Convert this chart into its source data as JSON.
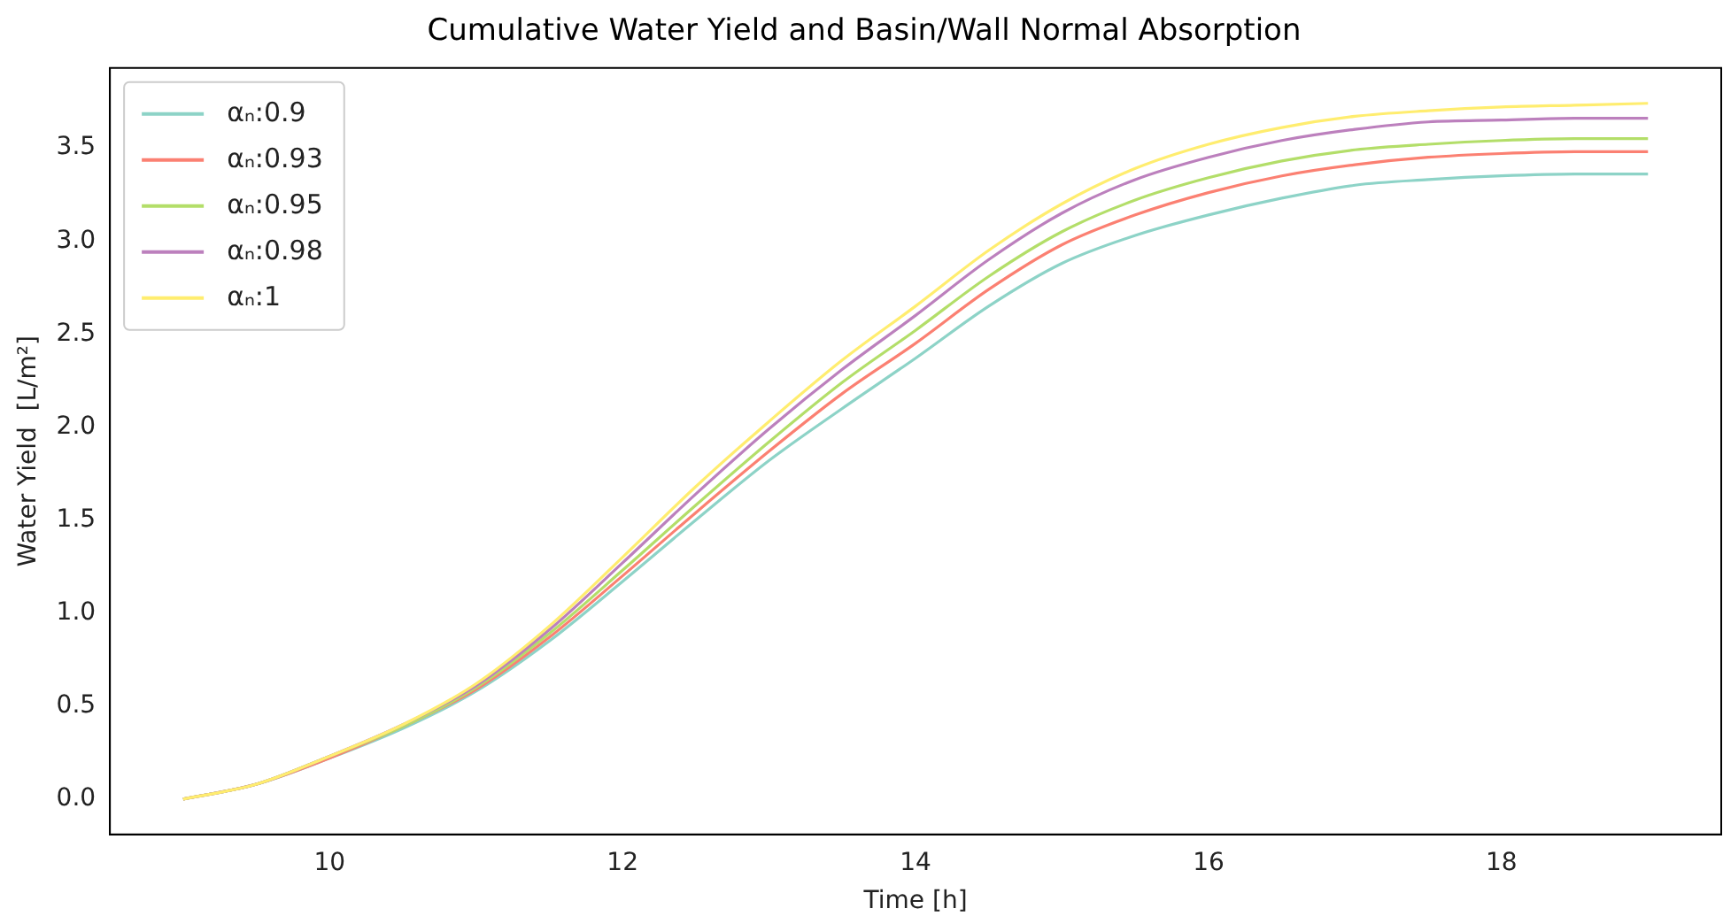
{
  "chart_data": {
    "type": "line",
    "title": "Cumulative Water Yield and Basin/Wall Normal Absorption",
    "xlabel": "Time [h]",
    "ylabel": "Water Yield  [L/m²]",
    "x": [
      9,
      9.5,
      10,
      10.5,
      11,
      11.5,
      12,
      12.5,
      13,
      13.5,
      14,
      14.5,
      15,
      15.5,
      16,
      16.5,
      17,
      17.5,
      18,
      18.5,
      19
    ],
    "series": [
      {
        "name": "αₙ:0.9",
        "color": "#8dd3c7",
        "values": [
          0,
          0.08,
          0.22,
          0.38,
          0.58,
          0.85,
          1.17,
          1.5,
          1.82,
          2.1,
          2.37,
          2.65,
          2.88,
          3.03,
          3.14,
          3.23,
          3.3,
          3.33,
          3.35,
          3.36,
          3.36
        ]
      },
      {
        "name": "αₙ:0.93",
        "color": "#fb8072",
        "values": [
          0,
          0.08,
          0.22,
          0.39,
          0.59,
          0.87,
          1.2,
          1.54,
          1.87,
          2.18,
          2.45,
          2.74,
          2.98,
          3.14,
          3.26,
          3.35,
          3.41,
          3.45,
          3.47,
          3.48,
          3.48
        ]
      },
      {
        "name": "αₙ:0.95",
        "color": "#b3de69",
        "values": [
          0,
          0.08,
          0.23,
          0.39,
          0.6,
          0.89,
          1.23,
          1.58,
          1.92,
          2.24,
          2.52,
          2.81,
          3.05,
          3.22,
          3.34,
          3.43,
          3.49,
          3.52,
          3.54,
          3.55,
          3.55
        ]
      },
      {
        "name": "αₙ:0.98",
        "color": "#bc80bd",
        "values": [
          0,
          0.08,
          0.23,
          0.4,
          0.61,
          0.91,
          1.27,
          1.64,
          1.99,
          2.31,
          2.6,
          2.9,
          3.15,
          3.33,
          3.45,
          3.54,
          3.6,
          3.64,
          3.65,
          3.66,
          3.66
        ]
      },
      {
        "name": "αₙ:1",
        "color": "#ffed6f",
        "values": [
          0,
          0.08,
          0.23,
          0.4,
          0.62,
          0.93,
          1.3,
          1.68,
          2.03,
          2.36,
          2.65,
          2.95,
          3.2,
          3.39,
          3.52,
          3.61,
          3.67,
          3.7,
          3.72,
          3.73,
          3.74
        ]
      }
    ],
    "xlim": [
      8.5,
      19.5
    ],
    "xticks": [
      10,
      12,
      14,
      16,
      18
    ],
    "ylim": [
      -0.19,
      3.93
    ],
    "yticks": [
      {
        "value": 0,
        "label": "0.0"
      },
      0.5,
      {
        "value": 1,
        "label": "1.0"
      },
      1.5,
      {
        "value": 2,
        "label": "2.0"
      },
      2.5,
      {
        "value": 3,
        "label": "3.0"
      },
      3.5
    ],
    "grid": false,
    "legend": "top left",
    "marker": "none",
    "line_style": "solid"
  }
}
